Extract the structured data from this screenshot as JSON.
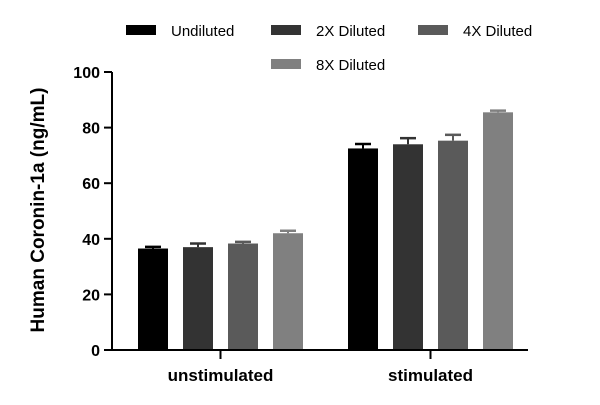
{
  "chart_data": {
    "type": "bar",
    "title": "",
    "xlabel": "",
    "ylabel": "Human Coronin-1a (ng/mL)",
    "ylim": [
      0,
      100
    ],
    "yticks": [
      "0",
      "20",
      "40",
      "60",
      "80",
      "100"
    ],
    "categories": [
      "unstimulated",
      "stimulated"
    ],
    "series": [
      {
        "name": "Undiluted",
        "color": "#000000",
        "values": [
          36.5,
          72.5
        ],
        "errors": [
          0.6,
          1.6
        ]
      },
      {
        "name": "2X Diluted",
        "color": "#333333",
        "values": [
          37.0,
          74.0
        ],
        "errors": [
          1.3,
          2.2
        ]
      },
      {
        "name": "4X Diluted",
        "color": "#5a5a5a",
        "values": [
          38.3,
          75.3
        ],
        "errors": [
          0.6,
          2.1
        ]
      },
      {
        "name": "8X Diluted",
        "color": "#808080",
        "values": [
          42.0,
          85.5
        ],
        "errors": [
          0.9,
          0.6
        ]
      }
    ],
    "legend_position": "top",
    "grid": false
  }
}
